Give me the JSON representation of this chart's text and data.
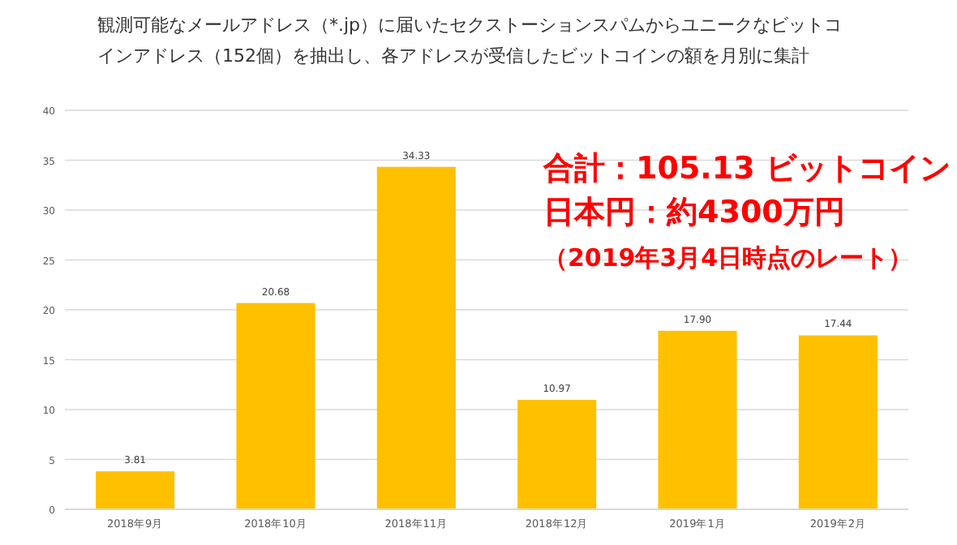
{
  "chart_data": {
    "type": "bar",
    "title": "観測可能なメールアドレス（*.jp）に届いたセクストーションスパムからユニークなビットコインアドレス（152個）を抽出し、各アドレスが受信したビットコインの額を月別に集計",
    "categories": [
      "2018年9月",
      "2018年10月",
      "2018年11月",
      "2018年12月",
      "2019年1月",
      "2019年2月"
    ],
    "values": [
      3.81,
      20.68,
      34.33,
      10.97,
      17.9,
      17.44
    ],
    "value_labels": [
      "3.81",
      "20.68",
      "34.33",
      "10.97",
      "17.90",
      "17.44"
    ],
    "color": "#ffc000",
    "ylim": [
      0,
      40
    ],
    "yticks": [
      0,
      5,
      10,
      15,
      20,
      25,
      30,
      35,
      40
    ],
    "grid": "y",
    "annotations": [
      "合計：105.13 ビットコイン",
      "日本円：約4300万円",
      "（2019年3月4日時点のレート）"
    ]
  }
}
